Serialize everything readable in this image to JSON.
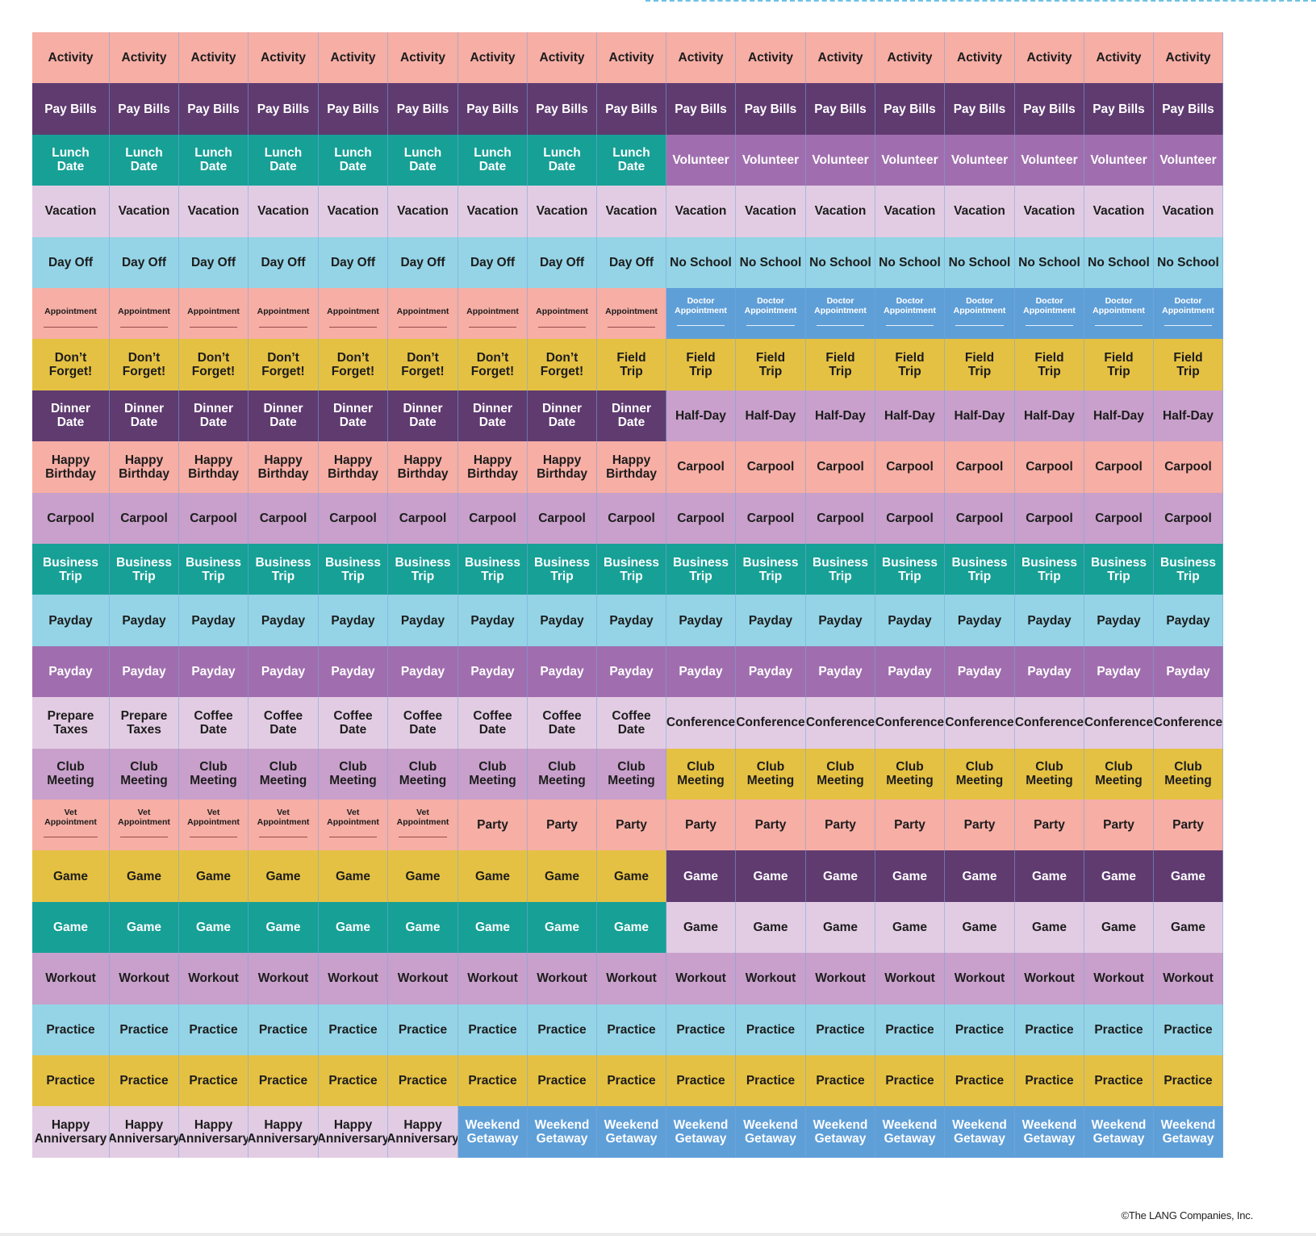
{
  "colors": {
    "pink": "#f6aea5",
    "dark_purple": "#5f3b70",
    "teal": "#17a096",
    "lavender": "#e2cce3",
    "light_blue": "#94d4e6",
    "blue": "#5f9fd8",
    "yellow": "#e5c143",
    "mauve": "#c8a0cb",
    "purple": "#a06eae"
  },
  "stickers": {
    "rows": [
      {
        "segments": [
          {
            "count": 17,
            "color": "pink",
            "label": "Activity"
          }
        ]
      },
      {
        "segments": [
          {
            "count": 17,
            "color": "dark_purple",
            "label": "Pay Bills"
          }
        ]
      },
      {
        "segments": [
          {
            "count": 9,
            "color": "teal",
            "label": "Lunch\nDate"
          },
          {
            "count": 8,
            "color": "purple",
            "label": "Volunteer"
          }
        ]
      },
      {
        "segments": [
          {
            "count": 17,
            "color": "lavender",
            "label": "Vacation"
          }
        ]
      },
      {
        "segments": [
          {
            "count": 9,
            "color": "light_blue",
            "label": "Day Off"
          },
          {
            "count": 8,
            "color": "light_blue",
            "label": "No School"
          }
        ]
      },
      {
        "segments": [
          {
            "count": 9,
            "color": "pink",
            "label": "Appointment",
            "writeline": true
          },
          {
            "count": 8,
            "color": "blue",
            "label": "Doctor\nAppointment",
            "writeline": true
          }
        ]
      },
      {
        "segments": [
          {
            "count": 8,
            "color": "yellow",
            "label": "Don’t\nForget!"
          },
          {
            "count": 9,
            "color": "yellow",
            "label": "Field\nTrip"
          }
        ]
      },
      {
        "segments": [
          {
            "count": 9,
            "color": "dark_purple",
            "label": "Dinner\nDate"
          },
          {
            "count": 8,
            "color": "mauve",
            "label": "Half-Day"
          }
        ]
      },
      {
        "segments": [
          {
            "count": 9,
            "color": "pink",
            "label": "Happy\nBirthday"
          },
          {
            "count": 8,
            "color": "pink",
            "label": "Carpool"
          }
        ]
      },
      {
        "segments": [
          {
            "count": 17,
            "color": "mauve",
            "label": "Carpool"
          }
        ]
      },
      {
        "segments": [
          {
            "count": 17,
            "color": "teal",
            "label": "Business\nTrip"
          }
        ]
      },
      {
        "segments": [
          {
            "count": 17,
            "color": "light_blue",
            "label": "Payday"
          }
        ]
      },
      {
        "segments": [
          {
            "count": 17,
            "color": "purple",
            "label": "Payday"
          }
        ]
      },
      {
        "segments": [
          {
            "count": 2,
            "color": "lavender",
            "label": "Prepare\nTaxes"
          },
          {
            "count": 7,
            "color": "lavender",
            "label": "Coffee\nDate"
          },
          {
            "count": 8,
            "color": "lavender",
            "label": "Conference"
          }
        ]
      },
      {
        "segments": [
          {
            "count": 9,
            "color": "mauve",
            "label": "Club\nMeeting"
          },
          {
            "count": 8,
            "color": "yellow",
            "label": "Club\nMeeting"
          }
        ]
      },
      {
        "segments": [
          {
            "count": 6,
            "color": "pink",
            "label": "Vet\nAppointment",
            "writeline": true
          },
          {
            "count": 11,
            "color": "pink",
            "label": "Party"
          }
        ]
      },
      {
        "segments": [
          {
            "count": 9,
            "color": "yellow",
            "label": "Game"
          },
          {
            "count": 8,
            "color": "dark_purple",
            "label": "Game"
          }
        ]
      },
      {
        "segments": [
          {
            "count": 9,
            "color": "teal",
            "label": "Game"
          },
          {
            "count": 8,
            "color": "lavender",
            "label": "Game"
          }
        ]
      },
      {
        "segments": [
          {
            "count": 17,
            "color": "mauve",
            "label": "Workout"
          }
        ]
      },
      {
        "segments": [
          {
            "count": 17,
            "color": "light_blue",
            "label": "Practice"
          }
        ]
      },
      {
        "segments": [
          {
            "count": 17,
            "color": "yellow",
            "label": "Practice"
          }
        ]
      },
      {
        "segments": [
          {
            "count": 6,
            "color": "lavender",
            "label": "Happy\nAnniversary"
          },
          {
            "count": 11,
            "color": "blue",
            "label": "Weekend\nGetaway"
          }
        ]
      }
    ]
  },
  "footer": {
    "copyright": "©The LANG Companies, Inc."
  }
}
